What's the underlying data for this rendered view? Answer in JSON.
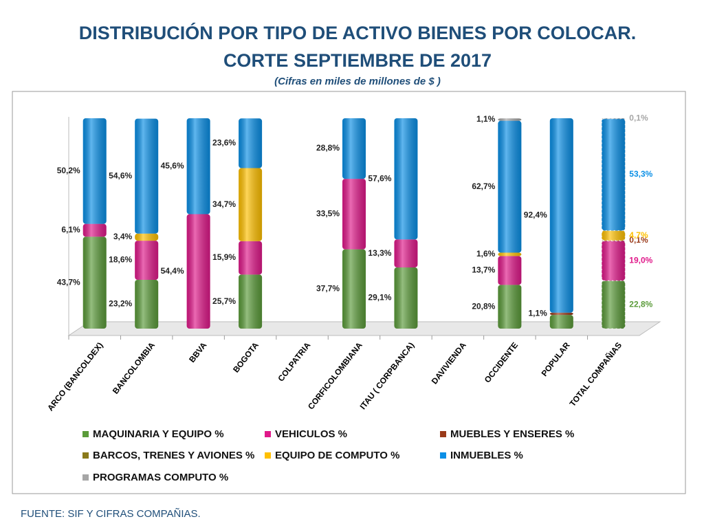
{
  "chart_data": {
    "type": "stacked_bar",
    "title": [
      "DISTRIBUCIÓN POR TIPO DE ACTIVO BIENES POR COLOCAR.",
      "CORTE SEPTIEMBRE DE 2017"
    ],
    "subtitle": "(Cifras en miles de millones de $ )",
    "source": "FUENTE: SIF Y CIFRAS COMPAÑIAS.",
    "categories": [
      "ARCO (BANCOLDEX)",
      "BANCOLOMBIA",
      "BBVA",
      "BOGOTA",
      "COLPATRIA",
      "CORFICOLOMBIANA",
      "ITAU ( CORPBANCA)",
      "DAVIVIENDA",
      "OCCIDENTE",
      "POPULAR",
      "TOTAL COMPAÑIAS"
    ],
    "ylim": [
      0,
      100
    ],
    "series": [
      {
        "name": "MAQUINARIA Y EQUIPO %",
        "color": "#5b9b3a",
        "values": [
          43.7,
          23.2,
          null,
          25.7,
          null,
          37.7,
          29.1,
          null,
          20.8,
          6.5,
          22.8
        ],
        "value_labels": [
          "43,7%",
          "23,2%",
          null,
          "25,7%",
          null,
          "37,7%",
          "29,1%",
          null,
          "20,8%",
          null,
          "22,8%"
        ]
      },
      {
        "name": "VEHICULOS %",
        "color": "#e0198a",
        "values": [
          6.1,
          18.6,
          54.4,
          15.9,
          null,
          33.5,
          13.3,
          null,
          13.7,
          null,
          19
        ],
        "value_labels": [
          "6,1%",
          "18,6%",
          "54,4%",
          "15,9%",
          null,
          "33,5%",
          "13,3%",
          null,
          "13,7%",
          null,
          "19,0%"
        ]
      },
      {
        "name": "MUEBLES Y ENSERES %",
        "color": "#9a3a1a",
        "values": [
          null,
          null,
          null,
          null,
          null,
          null,
          null,
          null,
          null,
          1.1,
          0.1
        ],
        "value_labels": [
          null,
          null,
          null,
          null,
          null,
          null,
          null,
          null,
          null,
          "1,1%",
          "0,1%"
        ]
      },
      {
        "name": "BARCOS, TRENES Y AVIONES %",
        "color": "#8a7a1a",
        "values": [
          null,
          null,
          null,
          null,
          null,
          null,
          null,
          null,
          null,
          null,
          null
        ]
      },
      {
        "name": "EQUIPO DE COMPUTO %",
        "color": "#ffc000",
        "values": [
          null,
          3.4,
          null,
          34.7,
          null,
          null,
          null,
          null,
          1.6,
          null,
          4.7
        ],
        "value_labels": [
          null,
          "3,4%",
          null,
          "34,7%",
          null,
          null,
          null,
          null,
          "1,6%",
          null,
          "4,7%"
        ]
      },
      {
        "name": "INMUEBLES %",
        "color": "#0a8fe6",
        "values": [
          50.2,
          54.6,
          45.6,
          23.6,
          null,
          28.8,
          57.6,
          null,
          62.7,
          92.4,
          53.3
        ],
        "value_labels": [
          "50,2%",
          "54,6%",
          "45,6%",
          "23,6%",
          null,
          "28,8%",
          "57,6%",
          null,
          "62,7%",
          "92,4%",
          "53,3%"
        ]
      },
      {
        "name": "PROGRAMAS COMPUTO %",
        "color": "#a6a6a6",
        "values": [
          null,
          null,
          null,
          null,
          null,
          null,
          null,
          null,
          1.1,
          null,
          0.1
        ],
        "value_labels": [
          null,
          null,
          null,
          null,
          null,
          null,
          null,
          null,
          "1,1%",
          null,
          "0,1%"
        ]
      }
    ]
  }
}
